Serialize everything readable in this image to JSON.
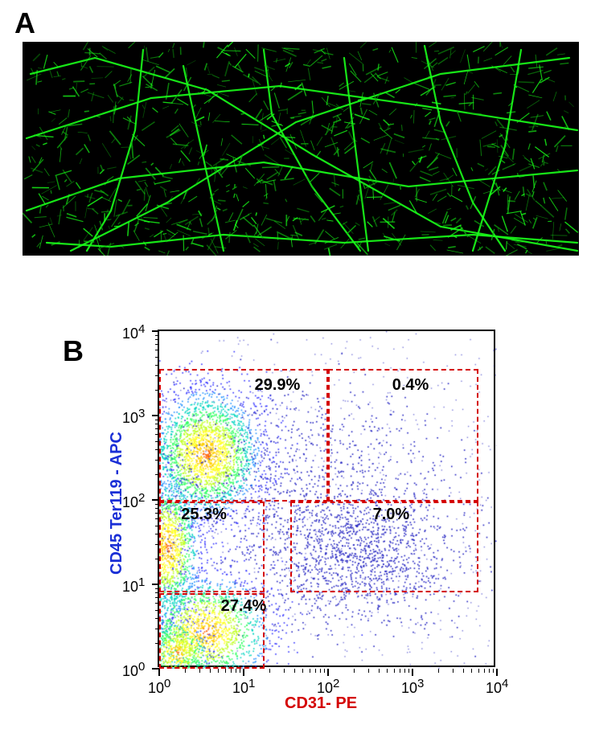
{
  "panelA": {
    "label": "A",
    "background_color": "#000000",
    "vasculature_color": "#19ff19",
    "vasculature_dim": "#0fae0f",
    "strokes": [
      [
        5,
        120,
        160,
        70,
        320,
        55,
        500,
        80,
        690,
        110
      ],
      [
        5,
        210,
        120,
        170,
        300,
        150,
        480,
        180,
        690,
        160
      ],
      [
        60,
        260,
        180,
        200,
        340,
        100,
        520,
        40,
        680,
        20
      ],
      [
        10,
        40,
        90,
        20,
        230,
        60,
        360,
        140,
        520,
        230,
        690,
        260
      ],
      [
        30,
        250,
        110,
        255,
        250,
        240,
        400,
        250,
        560,
        240,
        690,
        250
      ],
      [
        300,
        10,
        310,
        90,
        360,
        180,
        420,
        260
      ],
      [
        500,
        5,
        520,
        100,
        560,
        200,
        600,
        260
      ],
      [
        150,
        10,
        140,
        110,
        110,
        210,
        80,
        260
      ],
      [
        400,
        20,
        430,
        260
      ],
      [
        620,
        10,
        600,
        130,
        560,
        260
      ],
      [
        200,
        30,
        250,
        260
      ]
    ]
  },
  "panelB": {
    "label": "B",
    "y_axis": "CD45 Ter119 - APC",
    "x_axis": "CD31- PE",
    "y_axis_color": "#1a2fd6",
    "x_axis_color": "#d40000",
    "plot_bg": "#ffffff",
    "frame_color": "#000000",
    "gate_color": "#d40000",
    "axis": {
      "xmin_exp": 0,
      "xmax_exp": 4,
      "ymin_exp": 0,
      "ymax_exp": 4,
      "tick_exps": [
        0,
        1,
        2,
        3,
        4
      ]
    },
    "scatter": {
      "density_palette": [
        "#3030ff",
        "#2090ff",
        "#00d4c0",
        "#30ff60",
        "#c0ff20",
        "#ffff20",
        "#ffd000",
        "#ff6000"
      ],
      "edge_color": "#2020c0",
      "clusters": [
        {
          "cx_exp": 0.55,
          "cy_exp": 2.55,
          "sx": 0.35,
          "sy": 0.4,
          "n": 2600,
          "dense": true,
          "comment": "UL main"
        },
        {
          "cx_exp": 0.1,
          "cy_exp": 1.45,
          "sx": 0.2,
          "sy": 0.45,
          "n": 1400,
          "dense": true,
          "comment": "left-mid blob"
        },
        {
          "cx_exp": 0.55,
          "cy_exp": 0.45,
          "sx": 0.4,
          "sy": 0.35,
          "n": 1800,
          "dense": true,
          "comment": "LL blob"
        },
        {
          "cx_exp": 2.3,
          "cy_exp": 1.35,
          "sx": 0.65,
          "sy": 0.4,
          "n": 1400,
          "dense": false,
          "comment": "CD31+ LR"
        },
        {
          "cx_exp": 1.6,
          "cy_exp": 2.3,
          "sx": 0.8,
          "sy": 0.55,
          "n": 600,
          "dense": false,
          "comment": "scatter upper mid"
        },
        {
          "cx_exp": 2.7,
          "cy_exp": 2.5,
          "sx": 0.6,
          "sy": 0.5,
          "n": 120,
          "dense": false,
          "comment": "UR sparse"
        },
        {
          "cx_exp": 0.2,
          "cy_exp": 0.2,
          "sx": 0.2,
          "sy": 0.2,
          "n": 500,
          "dense": true,
          "comment": "origin"
        }
      ]
    },
    "gates": [
      {
        "id": "g-ul",
        "x0_exp": 0.0,
        "x1_exp": 2.0,
        "y0_exp": 1.98,
        "y1_exp": 3.55,
        "label": "29.9%",
        "lx_exp": 1.32,
        "ly_exp": 3.35
      },
      {
        "id": "g-ur",
        "x0_exp": 2.0,
        "x1_exp": 3.78,
        "y0_exp": 1.98,
        "y1_exp": 3.55,
        "label": "0.4%",
        "lx_exp": 2.95,
        "ly_exp": 3.35
      },
      {
        "id": "g-ml",
        "x0_exp": 0.0,
        "x1_exp": 1.25,
        "y0_exp": 0.9,
        "y1_exp": 1.98,
        "label": "25.3%",
        "lx_exp": 0.45,
        "ly_exp": 1.82
      },
      {
        "id": "g-lr",
        "x0_exp": 1.55,
        "x1_exp": 3.78,
        "y0_exp": 0.9,
        "y1_exp": 1.98,
        "label": "7.0%",
        "lx_exp": 2.72,
        "ly_exp": 1.82
      },
      {
        "id": "g-ll",
        "x0_exp": 0.0,
        "x1_exp": 1.25,
        "y0_exp": 0.0,
        "y1_exp": 0.9,
        "label": "27.4%",
        "lx_exp": 0.92,
        "ly_exp": 0.73
      }
    ],
    "tick_fontsize": 18,
    "axis_fontsize": 20,
    "gate_label_fontsize": 20
  }
}
